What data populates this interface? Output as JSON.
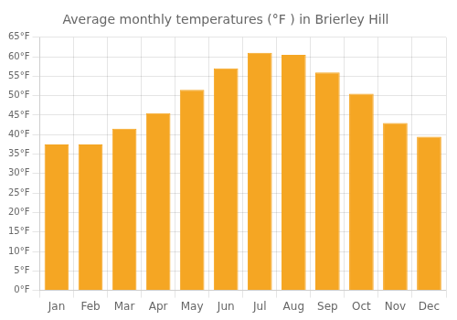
{
  "chart_data": {
    "type": "bar",
    "title": "Average monthly temperatures (°F ) in Brierley Hill",
    "categories": [
      "Jan",
      "Feb",
      "Mar",
      "Apr",
      "May",
      "Jun",
      "Jul",
      "Aug",
      "Sep",
      "Oct",
      "Nov",
      "Dec"
    ],
    "values": [
      37.5,
      37.5,
      41.5,
      45.5,
      51.5,
      57.0,
      61.0,
      60.5,
      56.0,
      50.5,
      43.0,
      39.5
    ],
    "color": "#F5A623",
    "ylim": [
      0,
      65
    ],
    "yticks": [
      {
        "value": 0,
        "label": "0°F"
      },
      {
        "value": 5,
        "label": "5°F"
      },
      {
        "value": 10,
        "label": "10°F"
      },
      {
        "value": 15,
        "label": "15°F"
      },
      {
        "value": 20,
        "label": "20°F"
      },
      {
        "value": 25,
        "label": "25°F"
      },
      {
        "value": 30,
        "label": "30°F"
      },
      {
        "value": 35,
        "label": "35°F"
      },
      {
        "value": 40,
        "label": "40°F"
      },
      {
        "value": 45,
        "label": "45°F"
      },
      {
        "value": 50,
        "label": "50°F"
      },
      {
        "value": 55,
        "label": "55°F"
      },
      {
        "value": 60,
        "label": "60°F"
      },
      {
        "value": 65,
        "label": "65°F"
      }
    ],
    "grid": true
  }
}
